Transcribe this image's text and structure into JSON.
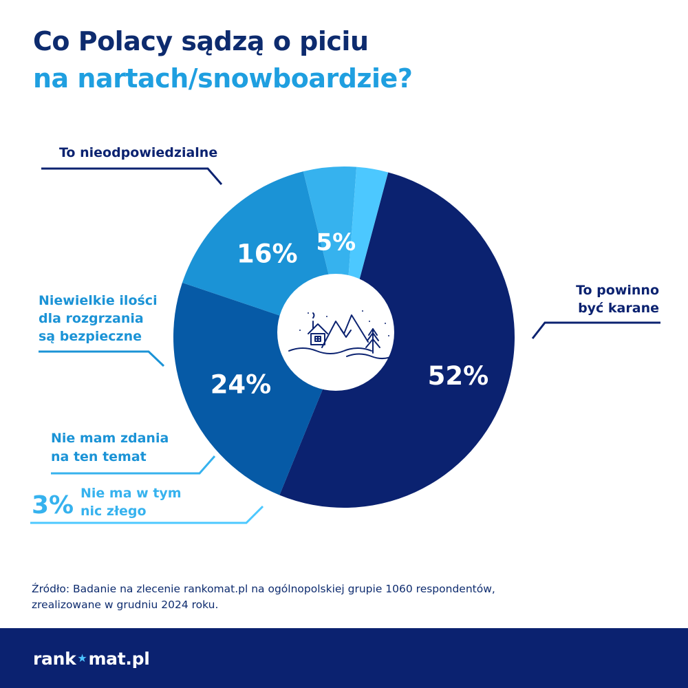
{
  "title": {
    "line1": "Co Polacy sądzą o piciu",
    "line2": "na nartach/snowboardzie?"
  },
  "chart_data": {
    "type": "pie",
    "variant": "donut",
    "slices": [
      {
        "label_lines": [
          "To powinno",
          "być karane"
        ],
        "value": 52,
        "value_label": "52%",
        "color": "#0b2270"
      },
      {
        "label_lines": [
          "To nieodpowiedzialne"
        ],
        "value": 24,
        "value_label": "24%",
        "color": "#065aa6"
      },
      {
        "label_lines": [
          "Niewielkie ilości",
          "dla rozgrzania",
          "są bezpieczne"
        ],
        "value": 16,
        "value_label": "16%",
        "color": "#1b93d6"
      },
      {
        "label_lines": [
          "Nie mam zdania",
          "na ten temat"
        ],
        "value": 5,
        "value_label": "5%",
        "color": "#36b2ee"
      },
      {
        "label_lines": [
          "Nie ma w tym",
          "nic złego"
        ],
        "value": 3,
        "value_label": "3%",
        "color": "#4cc8ff"
      }
    ],
    "center_icon": "winter-mountain-cabin-icon"
  },
  "source": {
    "line1": "Źródło: Badanie na zlecenie rankomat.pl na ogólnopolskiej grupie 1060 respondentów,",
    "line2": "zrealizowane w grudniu 2024 roku."
  },
  "footer": {
    "logo_part1": "rank",
    "logo_part2": "mat.pl",
    "logo_star": "star-icon"
  }
}
